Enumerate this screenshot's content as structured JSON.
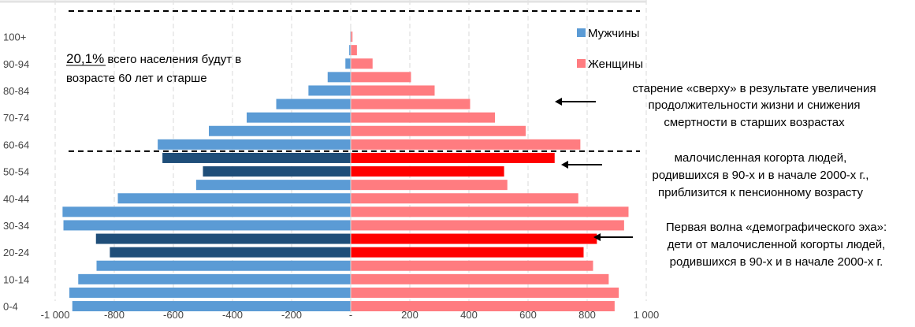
{
  "chart_data": {
    "type": "bar",
    "orientation": "horizontal",
    "layout": "population-pyramid",
    "categories": [
      "0-4",
      "5-9",
      "10-14",
      "15-19",
      "20-24",
      "25-29",
      "30-34",
      "35-39",
      "40-44",
      "45-49",
      "50-54",
      "55-59",
      "60-64",
      "65-69",
      "70-74",
      "75-79",
      "80-84",
      "85-89",
      "90-94",
      "95-99",
      "100+"
    ],
    "y_tick_labels": [
      "100+",
      "90-94",
      "80-84",
      "70-74",
      "60-64",
      "50-54",
      "40-44",
      "30-34",
      "20-24",
      "10-14",
      "0-4"
    ],
    "x_tick_labels": [
      "-1 000",
      "-800",
      "-600",
      "-400",
      "-200",
      "-",
      "200",
      "400",
      "600",
      "800",
      "1 000"
    ],
    "xlim": [
      -1000,
      1000
    ],
    "grid": true,
    "legend_position": "top-right",
    "series": [
      {
        "name": "Мужчины",
        "color": "#5b9bd5",
        "values": [
          -942,
          -952,
          -922,
          -860,
          -815,
          -862,
          -972,
          -975,
          -788,
          -523,
          -500,
          -637,
          -653,
          -480,
          -352,
          -252,
          -143,
          -78,
          -18,
          -5,
          -2
        ]
      },
      {
        "name": "Женщины",
        "color": "#ff7c80",
        "values": [
          893,
          907,
          873,
          820,
          788,
          833,
          925,
          940,
          770,
          530,
          519,
          690,
          777,
          592,
          488,
          404,
          284,
          204,
          74,
          21,
          6
        ]
      }
    ],
    "highlighted_categories": [
      "20-24",
      "25-29",
      "50-54",
      "55-59"
    ],
    "highlight_colors": {
      "male": "#1f4e79",
      "female": "#ff0000"
    },
    "reference_lines": [
      {
        "type": "dashed",
        "between": [
          "60-64",
          "65-69"
        ]
      },
      {
        "type": "dashed",
        "at": "top"
      }
    ],
    "annotations": [
      {
        "id": "share",
        "highlight": "20,1%",
        "lines": [
          "20,1% всего населения будут в",
          "возрасте 60 лет и старше"
        ]
      },
      {
        "id": "aging",
        "lines": [
          "старение «сверху» в результате увеличения",
          "продолжительности жизни и снижения",
          "смертности в старших возрастах"
        ]
      },
      {
        "id": "cohort",
        "lines": [
          "малочисленная когорта людей,",
          "родившихся в 90-х и в начале 2000-х г.,",
          "приблизится к пенсионному возрасту"
        ]
      },
      {
        "id": "echo",
        "lines": [
          "Первая волна «демографического эха»:",
          "дети от малочисленной когорты людей,",
          "родившихся в 90-х и в начале 2000-х г."
        ]
      }
    ]
  }
}
